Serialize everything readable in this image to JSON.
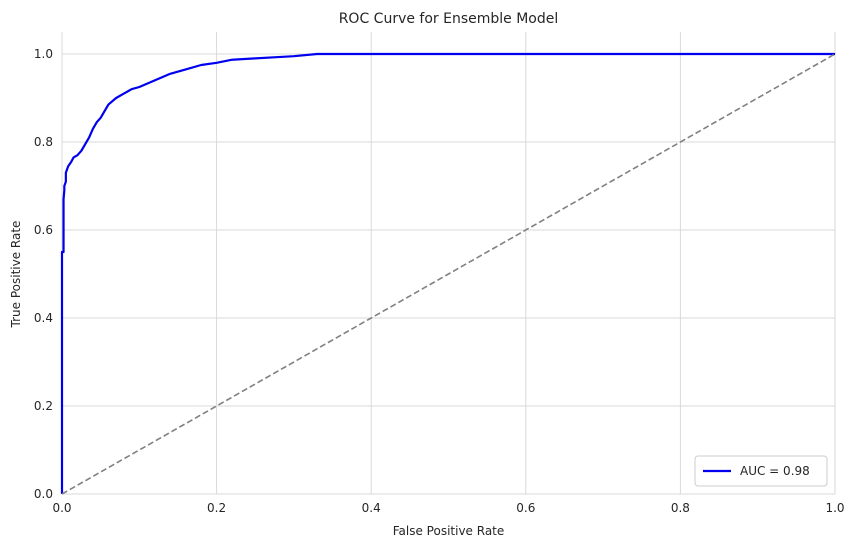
{
  "chart_data": {
    "type": "line",
    "title": "ROC Curve for Ensemble Model",
    "xlabel": "False Positive Rate",
    "ylabel": "True Positive Rate",
    "xlim": [
      0.0,
      1.0
    ],
    "ylim": [
      0.0,
      1.05
    ],
    "xticks": [
      "0.0",
      "0.2",
      "0.4",
      "0.6",
      "0.8",
      "1.0"
    ],
    "yticks": [
      "0.0",
      "0.2",
      "0.4",
      "0.6",
      "0.8",
      "1.0"
    ],
    "grid": true,
    "legend_position": "bottom-right",
    "series": [
      {
        "name": "AUC = 0.98",
        "color": "#0000ee",
        "style": "solid",
        "x": [
          0.0,
          0.0,
          0.0,
          0.002,
          0.002,
          0.003,
          0.003,
          0.005,
          0.005,
          0.007,
          0.008,
          0.01,
          0.012,
          0.015,
          0.02,
          0.025,
          0.03,
          0.035,
          0.04,
          0.045,
          0.05,
          0.055,
          0.06,
          0.07,
          0.08,
          0.09,
          0.1,
          0.12,
          0.14,
          0.16,
          0.18,
          0.2,
          0.22,
          0.25,
          0.28,
          0.3,
          0.33,
          0.4,
          0.6,
          0.8,
          1.0
        ],
        "y": [
          0.0,
          0.36,
          0.55,
          0.55,
          0.67,
          0.69,
          0.7,
          0.71,
          0.73,
          0.74,
          0.745,
          0.75,
          0.755,
          0.765,
          0.77,
          0.78,
          0.795,
          0.81,
          0.83,
          0.845,
          0.855,
          0.87,
          0.885,
          0.9,
          0.91,
          0.92,
          0.925,
          0.94,
          0.955,
          0.965,
          0.975,
          0.98,
          0.987,
          0.99,
          0.993,
          0.995,
          1.0,
          1.0,
          1.0,
          1.0,
          1.0
        ]
      },
      {
        "name": "",
        "color": "#808080",
        "style": "dashed",
        "x": [
          0.0,
          1.0
        ],
        "y": [
          0.0,
          1.0
        ]
      }
    ]
  }
}
